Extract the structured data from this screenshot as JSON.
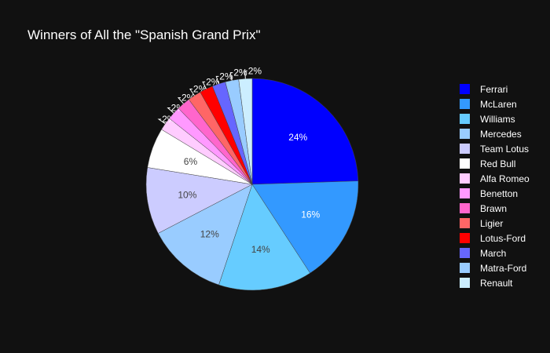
{
  "chart_data": {
    "type": "pie",
    "title": "Winners of All the \"Spanish Grand Prix\"",
    "categories": [
      "Ferrari",
      "McLaren",
      "Williams",
      "Mercedes",
      "Team Lotus",
      "Red Bull",
      "Alfa Romeo",
      "Benetton",
      "Brawn",
      "Ligier",
      "Lotus-Ford",
      "March",
      "Matra-Ford",
      "Renault"
    ],
    "values": [
      12,
      8,
      7,
      6,
      5,
      3,
      1,
      1,
      1,
      1,
      1,
      1,
      1,
      1
    ],
    "labels": [
      "24%",
      "16%",
      "14%",
      "12%",
      "10%",
      "6%",
      "2%",
      "2%",
      "2%",
      "2%",
      "2%",
      "2%",
      "2%",
      "2%"
    ],
    "colors": [
      "#0000ff",
      "#3399ff",
      "#66ccff",
      "#99ccff",
      "#ccccff",
      "#ffffff",
      "#ffccff",
      "#ff99ff",
      "#ff66cc",
      "#ff6666",
      "#ff0000",
      "#6666ff",
      "#99ccff",
      "#cceeff"
    ],
    "legend_position": "right",
    "sort": "descending-order-clockwise-from-top"
  }
}
